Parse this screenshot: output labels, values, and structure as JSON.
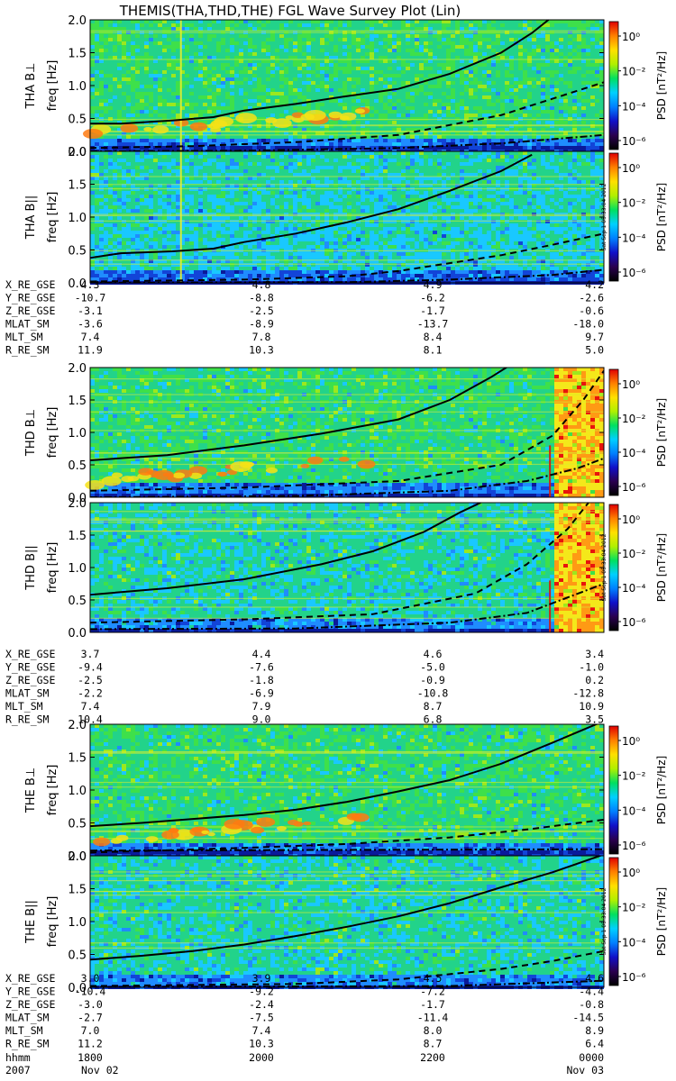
{
  "title": "THEMIS(THA,THD,THE) FGL Wave Survey Plot (Lin)",
  "colorbar": {
    "label": "PSD [nT²/Hz]",
    "tick_labels": [
      "10⁰",
      "10⁻²",
      "10⁻⁴",
      "10⁻⁶"
    ],
    "colors": [
      "#000000",
      "#2a0050",
      "#1010c8",
      "#0080ff",
      "#00d0ff",
      "#00e060",
      "#b0f000",
      "#ffe000",
      "#ff8000",
      "#e00000"
    ]
  },
  "stamp": "Sat Sep  1 05:33:04 2012",
  "chart_data": {
    "type": "heatmap",
    "title": "THEMIS(THA,THD,THE) FGL Wave Survey Plot (Lin)",
    "ylim": [
      0,
      2.0
    ],
    "yticks": [
      "0.0",
      "0.5",
      "1.0",
      "1.5",
      "2.0"
    ],
    "ylabel": "freq [Hz]",
    "colorbar_range": "10^-6 to 10^1 nT^2/Hz",
    "xaxis": {
      "tick_labels": [
        "1800",
        "2000",
        "2200",
        "0000"
      ],
      "row_label": "hhmm",
      "date_label": "2007",
      "dates": [
        "Nov 02",
        "Nov 03"
      ]
    },
    "probes": [
      {
        "id": "THA",
        "panels": [
          {
            "label": "THA B⊥",
            "solid": [
              [
                0,
                0.42
              ],
              [
                0.06,
                0.42
              ],
              [
                0.16,
                0.47
              ],
              [
                0.24,
                0.52
              ],
              [
                0.3,
                0.62
              ],
              [
                0.4,
                0.72
              ],
              [
                0.5,
                0.84
              ],
              [
                0.6,
                0.95
              ],
              [
                0.7,
                1.18
              ],
              [
                0.8,
                1.5
              ],
              [
                0.86,
                1.8
              ],
              [
                0.9,
                2.05
              ]
            ],
            "dashed": [
              [
                0,
                0.05
              ],
              [
                0.2,
                0.08
              ],
              [
                0.4,
                0.14
              ],
              [
                0.6,
                0.25
              ],
              [
                0.8,
                0.55
              ],
              [
                0.9,
                0.8
              ],
              [
                1.0,
                1.05
              ]
            ],
            "dashdot": [
              [
                0,
                0.0
              ],
              [
                0.3,
                0.01
              ],
              [
                0.6,
                0.05
              ],
              [
                0.8,
                0.12
              ],
              [
                1.0,
                0.25
              ]
            ]
          },
          {
            "label": "THA B||",
            "solid": [
              [
                0,
                0.38
              ],
              [
                0.06,
                0.45
              ],
              [
                0.16,
                0.48
              ],
              [
                0.24,
                0.52
              ],
              [
                0.3,
                0.62
              ],
              [
                0.4,
                0.75
              ],
              [
                0.5,
                0.92
              ],
              [
                0.6,
                1.12
              ],
              [
                0.7,
                1.4
              ],
              [
                0.8,
                1.7
              ],
              [
                0.86,
                1.95
              ]
            ],
            "dashed": [
              [
                0,
                0.02
              ],
              [
                0.3,
                0.05
              ],
              [
                0.5,
                0.1
              ],
              [
                0.6,
                0.18
              ],
              [
                0.7,
                0.3
              ],
              [
                0.8,
                0.42
              ],
              [
                0.9,
                0.58
              ],
              [
                1.0,
                0.75
              ]
            ],
            "dashdot": [
              [
                0,
                0.0
              ],
              [
                0.5,
                0.01
              ],
              [
                0.7,
                0.05
              ],
              [
                0.9,
                0.12
              ],
              [
                1.0,
                0.2
              ]
            ]
          }
        ],
        "ephemeris": [
          {
            "name": "X_RE_GSE",
            "values": [
              "4.3",
              "4.8",
              "4.9",
              "4.2"
            ]
          },
          {
            "name": "Y_RE_GSE",
            "values": [
              "-10.7",
              "-8.8",
              "-6.2",
              "-2.6"
            ]
          },
          {
            "name": "Z_RE_GSE",
            "values": [
              "-3.1",
              "-2.5",
              "-1.7",
              "-0.6"
            ]
          },
          {
            "name": "MLAT_SM",
            "values": [
              "-3.6",
              "-8.9",
              "-13.7",
              "-18.0"
            ]
          },
          {
            "name": "MLT_SM",
            "values": [
              "7.4",
              "7.8",
              "8.4",
              "9.7"
            ]
          },
          {
            "name": "R_RE_SM",
            "values": [
              "11.9",
              "10.3",
              "8.1",
              "5.0"
            ]
          }
        ]
      },
      {
        "id": "THD",
        "panels": [
          {
            "label": "THD B⊥",
            "solid": [
              [
                0,
                0.57
              ],
              [
                0.15,
                0.65
              ],
              [
                0.3,
                0.8
              ],
              [
                0.45,
                0.98
              ],
              [
                0.6,
                1.2
              ],
              [
                0.7,
                1.5
              ],
              [
                0.78,
                1.85
              ],
              [
                0.82,
                2.05
              ]
            ],
            "dashed": [
              [
                0,
                0.1
              ],
              [
                0.3,
                0.15
              ],
              [
                0.6,
                0.25
              ],
              [
                0.8,
                0.5
              ],
              [
                0.9,
                0.95
              ],
              [
                0.96,
                1.5
              ],
              [
                1.0,
                1.95
              ]
            ],
            "dashdot": [
              [
                0,
                0.0
              ],
              [
                0.4,
                0.02
              ],
              [
                0.7,
                0.1
              ],
              [
                0.85,
                0.25
              ],
              [
                0.95,
                0.45
              ],
              [
                1.0,
                0.6
              ]
            ]
          },
          {
            "label": "THD B||",
            "solid": [
              [
                0,
                0.58
              ],
              [
                0.15,
                0.68
              ],
              [
                0.3,
                0.82
              ],
              [
                0.45,
                1.05
              ],
              [
                0.55,
                1.25
              ],
              [
                0.65,
                1.55
              ],
              [
                0.72,
                1.85
              ],
              [
                0.76,
                2.0
              ]
            ],
            "dashed": [
              [
                0,
                0.15
              ],
              [
                0.3,
                0.2
              ],
              [
                0.55,
                0.28
              ],
              [
                0.75,
                0.6
              ],
              [
                0.85,
                1.05
              ],
              [
                0.93,
                1.6
              ],
              [
                0.97,
                2.0
              ]
            ],
            "dashdot": [
              [
                0,
                0.05
              ],
              [
                0.4,
                0.06
              ],
              [
                0.7,
                0.15
              ],
              [
                0.85,
                0.3
              ],
              [
                1.0,
                0.75
              ]
            ]
          }
        ],
        "ephemeris": [
          {
            "name": "X_RE_GSE",
            "values": [
              "3.7",
              "4.4",
              "4.6",
              "3.4"
            ]
          },
          {
            "name": "Y_RE_GSE",
            "values": [
              "-9.4",
              "-7.6",
              "-5.0",
              "-1.0"
            ]
          },
          {
            "name": "Z_RE_GSE",
            "values": [
              "-2.5",
              "-1.8",
              "-0.9",
              "0.2"
            ]
          },
          {
            "name": "MLAT_SM",
            "values": [
              "-2.2",
              "-6.9",
              "-10.8",
              "-12.8"
            ]
          },
          {
            "name": "MLT_SM",
            "values": [
              "7.4",
              "7.9",
              "8.7",
              "10.9"
            ]
          },
          {
            "name": "R_RE_SM",
            "values": [
              "10.4",
              "9.0",
              "6.8",
              "3.5"
            ]
          }
        ]
      },
      {
        "id": "THE",
        "panels": [
          {
            "label": "THE B⊥",
            "solid": [
              [
                0,
                0.45
              ],
              [
                0.1,
                0.5
              ],
              [
                0.2,
                0.56
              ],
              [
                0.3,
                0.62
              ],
              [
                0.4,
                0.7
              ],
              [
                0.5,
                0.82
              ],
              [
                0.6,
                0.98
              ],
              [
                0.7,
                1.15
              ],
              [
                0.8,
                1.4
              ],
              [
                0.9,
                1.72
              ],
              [
                1.0,
                2.05
              ]
            ],
            "dashed": [
              [
                0,
                0.05
              ],
              [
                0.3,
                0.12
              ],
              [
                0.5,
                0.18
              ],
              [
                0.7,
                0.28
              ],
              [
                0.85,
                0.4
              ],
              [
                1.0,
                0.55
              ]
            ],
            "dashdot": [
              [
                0,
                0.08
              ],
              [
                1.0,
                0.1
              ]
            ]
          },
          {
            "label": "THE B||",
            "solid": [
              [
                0,
                0.42
              ],
              [
                0.1,
                0.48
              ],
              [
                0.2,
                0.55
              ],
              [
                0.3,
                0.65
              ],
              [
                0.4,
                0.78
              ],
              [
                0.5,
                0.92
              ],
              [
                0.6,
                1.08
              ],
              [
                0.7,
                1.28
              ],
              [
                0.8,
                1.52
              ],
              [
                0.9,
                1.75
              ],
              [
                1.0,
                2.02
              ]
            ],
            "dashed": [
              [
                0,
                0.02
              ],
              [
                0.4,
                0.05
              ],
              [
                0.6,
                0.12
              ],
              [
                0.8,
                0.28
              ],
              [
                0.9,
                0.4
              ],
              [
                1.0,
                0.55
              ]
            ],
            "dashdot": [
              [
                0,
                0.0
              ],
              [
                0.7,
                0.02
              ],
              [
                1.0,
                0.1
              ]
            ]
          }
        ],
        "ephemeris": [
          {
            "name": "X_RE_GSE",
            "values": [
              "3.0",
              "3.9",
              "4.5",
              "4.6"
            ]
          },
          {
            "name": "Y_RE_GSE",
            "values": [
              "-10.4",
              "-9.2",
              "-7.2",
              "-4.4"
            ]
          },
          {
            "name": "Z_RE_GSE",
            "values": [
              "-3.0",
              "-2.4",
              "-1.7",
              "-0.8"
            ]
          },
          {
            "name": "MLAT_SM",
            "values": [
              "-2.7",
              "-7.5",
              "-11.4",
              "-14.5"
            ]
          },
          {
            "name": "MLT_SM",
            "values": [
              "7.0",
              "7.4",
              "8.0",
              "8.9"
            ]
          },
          {
            "name": "R_RE_SM",
            "values": [
              "11.2",
              "10.3",
              "8.7",
              "6.4"
            ]
          }
        ]
      }
    ]
  }
}
